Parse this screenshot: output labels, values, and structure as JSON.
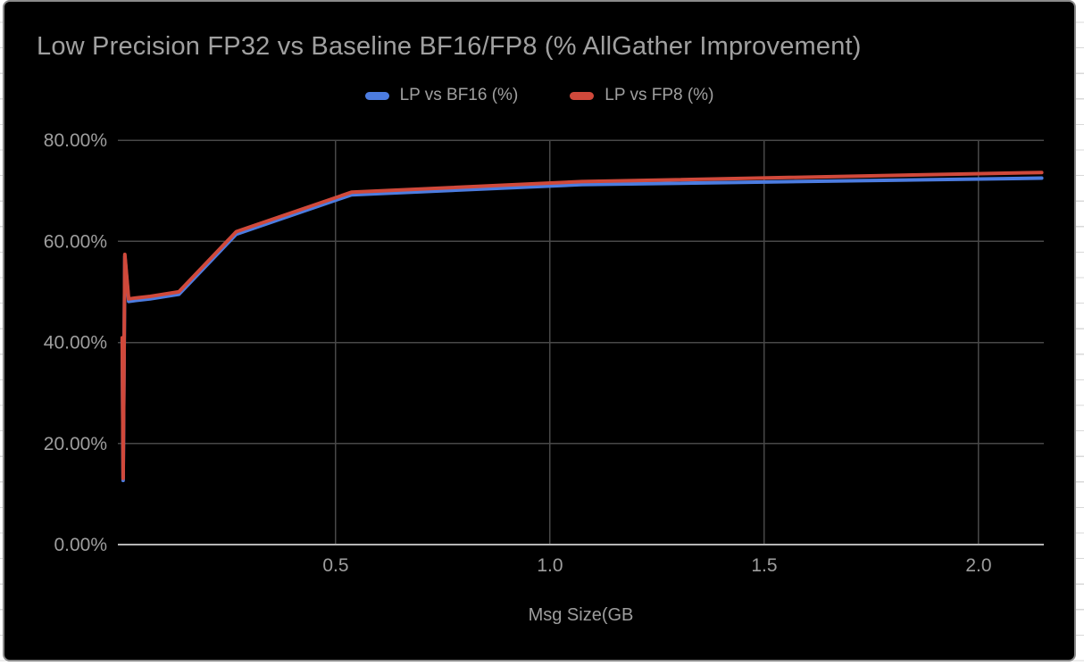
{
  "window": {
    "background": "#ffffff",
    "sheet_row_line_color": "#d9d9d9"
  },
  "chart": {
    "background": "#000000",
    "border_color": "#8b8b8b",
    "title_color": "#a0a0a0",
    "text_color": "#9e9e9e",
    "gridline_color": "#484848",
    "axis_line_color": "#b5b5b5"
  },
  "chart_data": {
    "type": "line",
    "title": "Low Precision FP32 vs Baseline BF16/FP8 (% AllGather Improvement)",
    "xlabel": "Msg Size(GB",
    "ylabel": "",
    "grid": true,
    "legend_position": "top",
    "xlim": [
      -0.0083,
      2.1521
    ],
    "ylim": [
      0,
      80
    ],
    "x": [
      0.002,
      0.004,
      0.008,
      0.017,
      0.034,
      0.067,
      0.134,
      0.268,
      0.537,
      1.074,
      2.147
    ],
    "series": [
      {
        "name": "LP vs BF16 (%)",
        "color": "#4c7ce0",
        "values": [
          40.5,
          12.7,
          57.0,
          48.1,
          48.3,
          48.6,
          49.5,
          61.4,
          69.2,
          71.2,
          72.5
        ]
      },
      {
        "name": "LP vs FP8 (%)",
        "color": "#d0493b",
        "values": [
          40.9,
          13.1,
          57.4,
          48.6,
          48.8,
          49.1,
          50.0,
          61.9,
          69.7,
          71.8,
          73.6
        ]
      }
    ],
    "x_ticks": [
      {
        "value": 0.5,
        "label": "0.5"
      },
      {
        "value": 1.0,
        "label": "1.0"
      },
      {
        "value": 1.5,
        "label": "1.5"
      },
      {
        "value": 2.0,
        "label": "2.0"
      }
    ],
    "y_ticks": [
      {
        "value": 0,
        "label": "0.00%"
      },
      {
        "value": 20,
        "label": "20.00%"
      },
      {
        "value": 40,
        "label": "40.00%"
      },
      {
        "value": 60,
        "label": "60.00%"
      },
      {
        "value": 80,
        "label": "80.00%"
      }
    ]
  }
}
